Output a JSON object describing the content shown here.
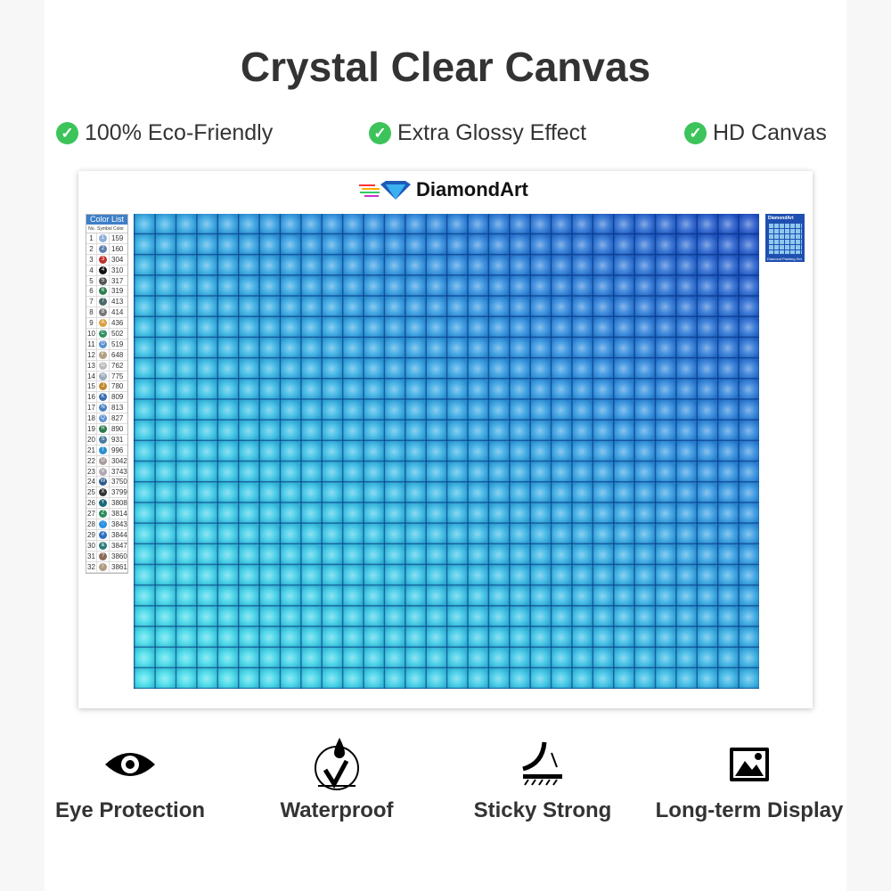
{
  "title": "Crystal Clear Canvas",
  "features": [
    "100% Eco-Friendly",
    "Extra Glossy Effect",
    "HD Canvas"
  ],
  "brand": "DiamondArt",
  "color_list": {
    "title": "Color List",
    "headers": [
      "No.",
      "Symbol",
      "Color"
    ],
    "rows": [
      [
        "1",
        "1",
        "159"
      ],
      [
        "2",
        "2",
        "160"
      ],
      [
        "3",
        "3",
        "304"
      ],
      [
        "4",
        "4",
        "310"
      ],
      [
        "5",
        "5",
        "317"
      ],
      [
        "6",
        "6",
        "319"
      ],
      [
        "7",
        "7",
        "413"
      ],
      [
        "8",
        "8",
        "414"
      ],
      [
        "9",
        "A",
        "436"
      ],
      [
        "10",
        "C",
        "502"
      ],
      [
        "11",
        "D",
        "519"
      ],
      [
        "12",
        "F",
        "648"
      ],
      [
        "13",
        "G",
        "762"
      ],
      [
        "14",
        "H",
        "775"
      ],
      [
        "15",
        "J",
        "780"
      ],
      [
        "16",
        "K",
        "809"
      ],
      [
        "17",
        "N",
        "813"
      ],
      [
        "18",
        "Q",
        "827"
      ],
      [
        "19",
        "R",
        "890"
      ],
      [
        "20",
        "S",
        "931"
      ],
      [
        "21",
        "T",
        "996"
      ],
      [
        "22",
        "U",
        "3042"
      ],
      [
        "23",
        "V",
        "3743"
      ],
      [
        "24",
        "W",
        "3750"
      ],
      [
        "25",
        "X",
        "3799"
      ],
      [
        "26",
        "Y",
        "3808"
      ],
      [
        "27",
        "Z",
        "3814"
      ],
      [
        "28",
        "♡",
        "3843"
      ],
      [
        "29",
        "#",
        "3844"
      ],
      [
        "30",
        "&",
        "3847"
      ],
      [
        "31",
        "?",
        "3860"
      ],
      [
        "32",
        "/",
        "3861"
      ]
    ]
  },
  "thumbnail": {
    "brand": "DiamondArt",
    "caption": "Diamond Painting Set"
  },
  "bottom_features": [
    {
      "label": "Eye Protection",
      "icon": "eye-icon"
    },
    {
      "label": "Waterproof",
      "icon": "water-drop-check-icon"
    },
    {
      "label": "Sticky Strong",
      "icon": "peel-adhesive-icon"
    },
    {
      "label": "Long-term Display",
      "icon": "picture-icon"
    }
  ],
  "colors": {
    "check": "#3cc35a",
    "title": "#333333"
  }
}
